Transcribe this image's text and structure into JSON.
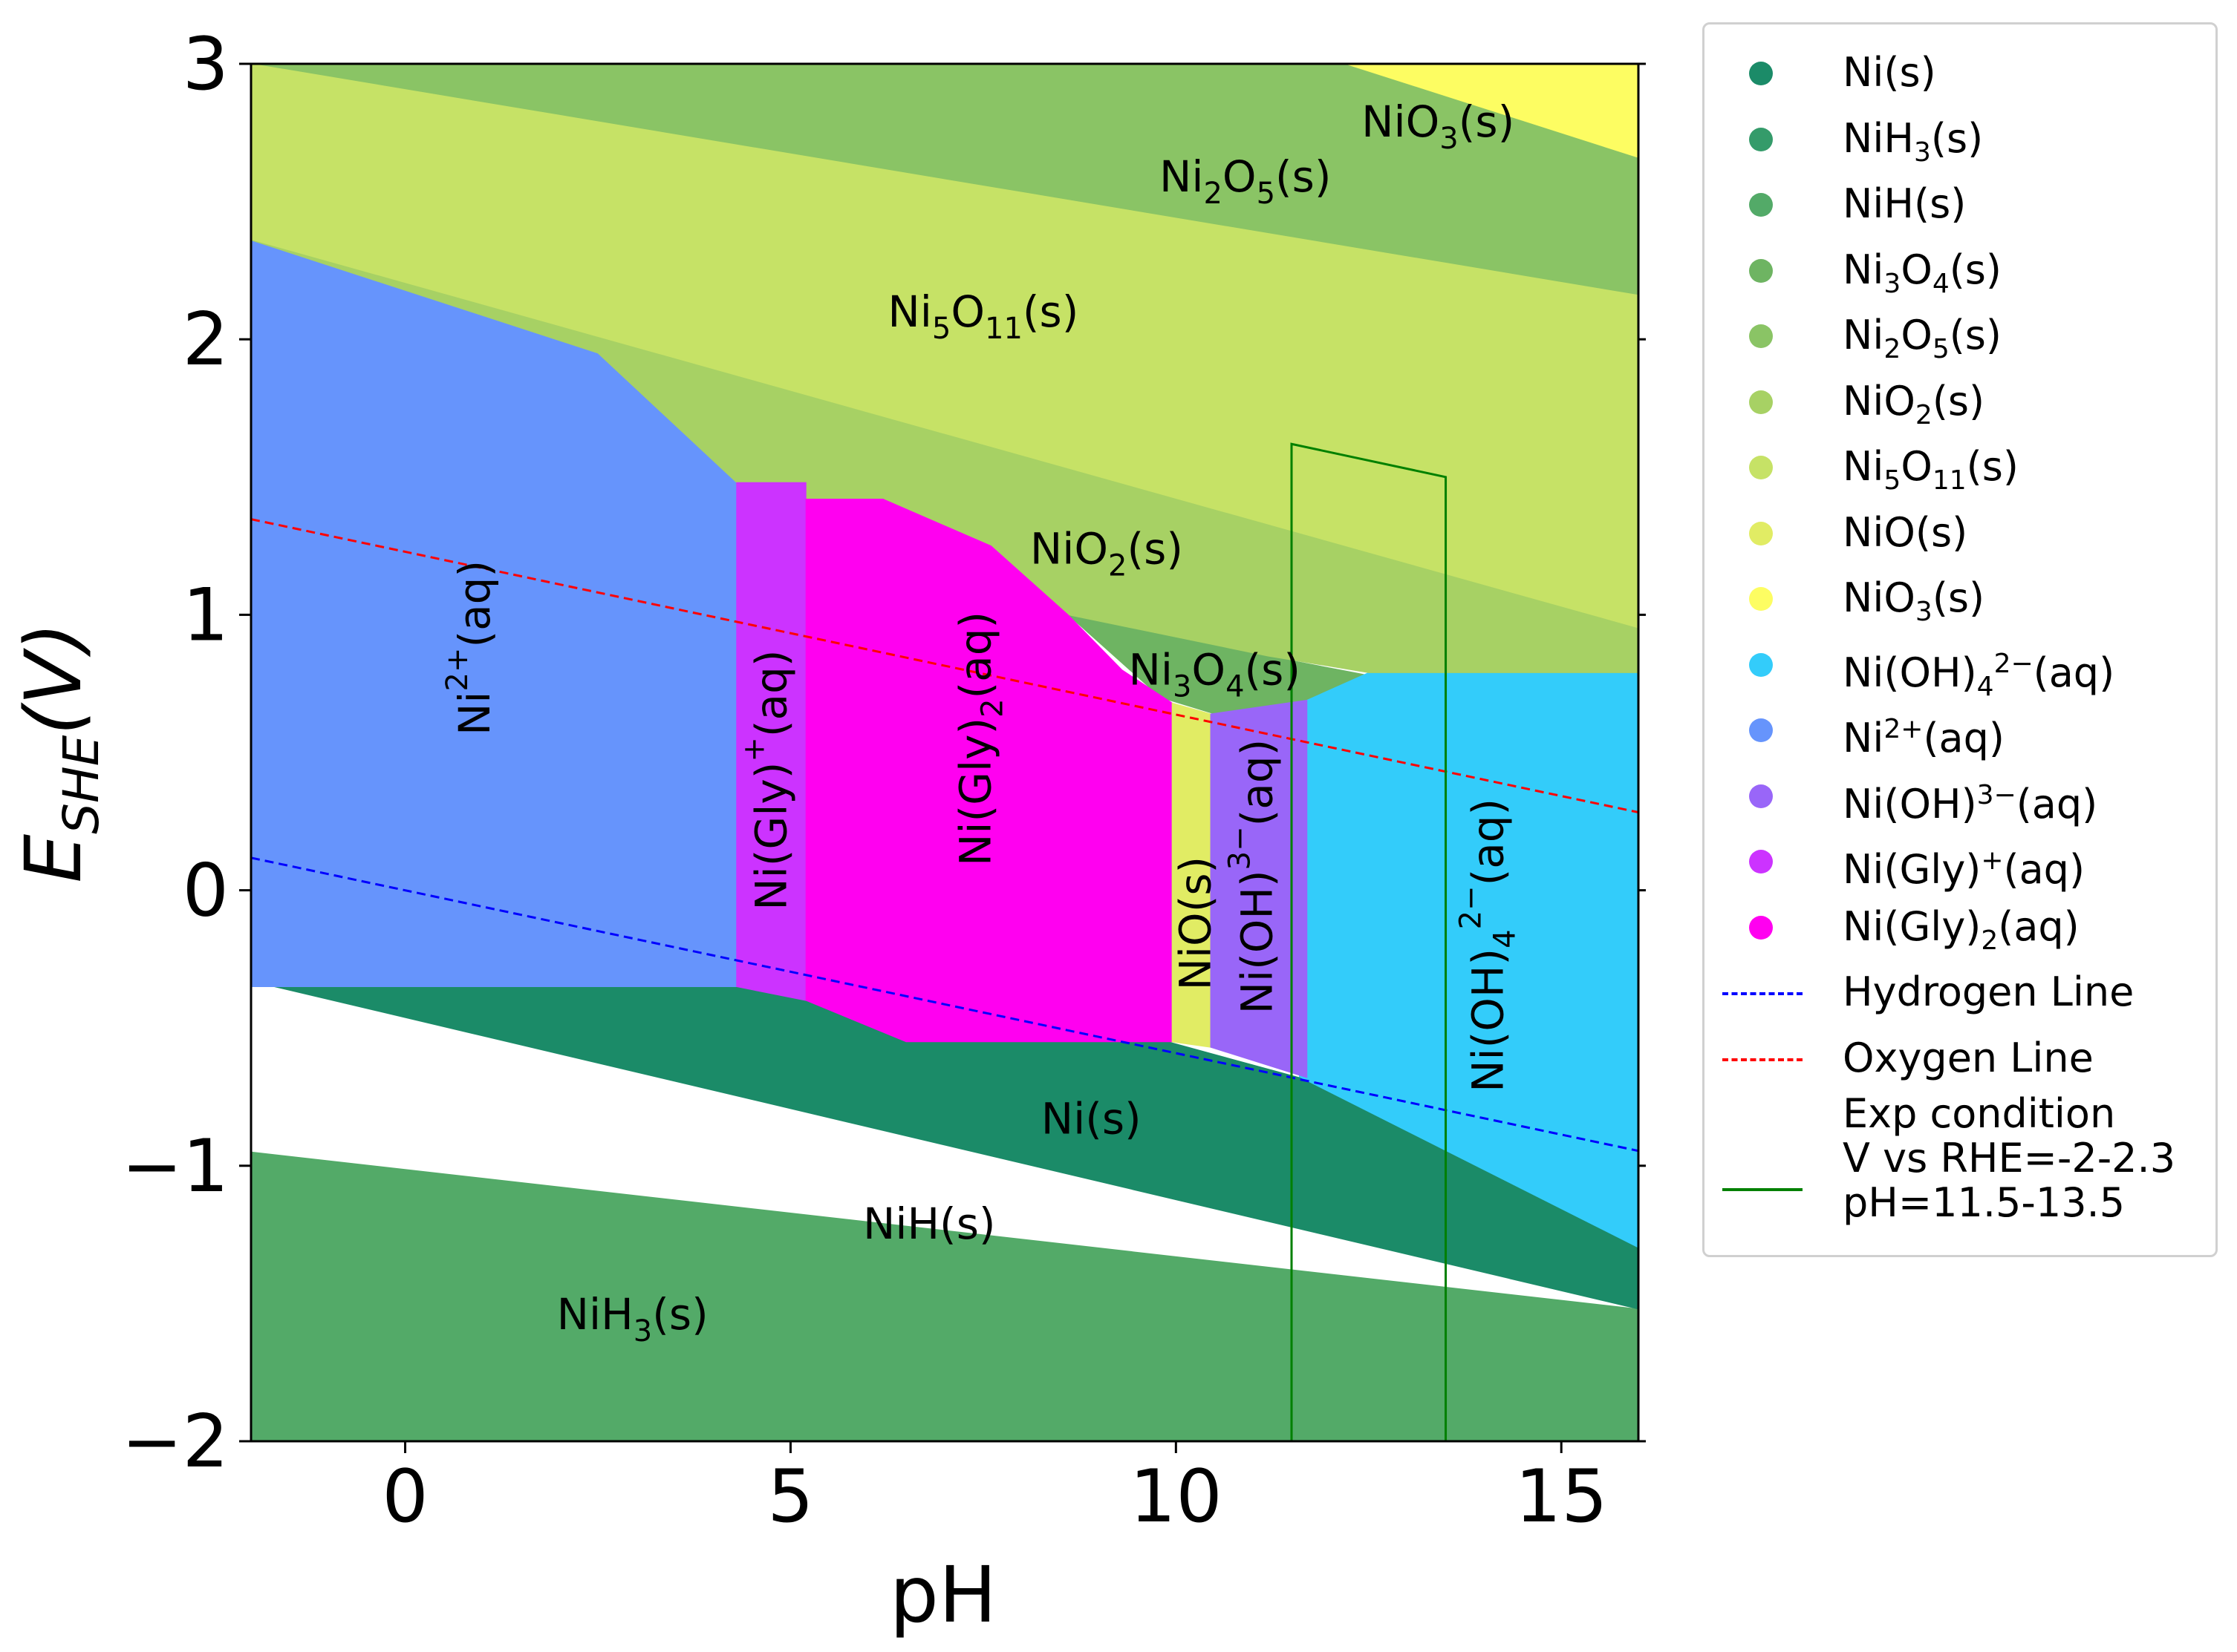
{
  "chart_data": {
    "type": "area",
    "title": "",
    "xlabel": "pH",
    "ylabel": "E",
    "ylabel_sub": "SHE",
    "ylabel_unit": "(V)",
    "xlim": [
      -2,
      16
    ],
    "ylim": [
      -2,
      3
    ],
    "xticks": [
      0,
      5,
      10,
      15
    ],
    "yticks": [
      -2,
      -1,
      0,
      1,
      2,
      3
    ],
    "xtick_labels": [
      "0",
      "5",
      "10",
      "15"
    ],
    "ytick_labels": [
      "−2",
      "−1",
      "0",
      "1",
      "2",
      "3"
    ],
    "grid": false,
    "legend_position": "outside-right",
    "phases": [
      {
        "name": "Ni(s)",
        "color": "#1b8b68"
      },
      {
        "name": "NiH3(s)",
        "color": "#349b6a"
      },
      {
        "name": "NiH(s)",
        "color": "#53aa68"
      },
      {
        "name": "Ni3O4(s)",
        "color": "#6eb462"
      },
      {
        "name": "Ni2O5(s)",
        "color": "#8ac465"
      },
      {
        "name": "NiO2(s)",
        "color": "#a7d164"
      },
      {
        "name": "Ni5O11(s)",
        "color": "#c6e266"
      },
      {
        "name": "NiO(s)",
        "color": "#e1ec64"
      },
      {
        "name": "NiO3(s)",
        "color": "#fdfd62"
      },
      {
        "name": "Ni(OH)4 2-(aq)",
        "color": "#33ccfa"
      },
      {
        "name": "Ni2+(aq)",
        "color": "#6694fc"
      },
      {
        "name": "Ni(OH)3-(aq)",
        "color": "#9966f8"
      },
      {
        "name": "Ni(Gly)+(aq)",
        "color": "#cc33ff"
      },
      {
        "name": "Ni(Gly)2(aq)",
        "color": "#ff00f0"
      }
    ],
    "regions": [
      {
        "phase": "NiH3(s)",
        "color": "#349b6a",
        "polygon": [
          [
            -2,
            -2
          ],
          [
            16,
            -2
          ],
          [
            16,
            -2.6
          ],
          [
            -2,
            -0.95
          ]
        ]
      },
      {
        "phase": "NiH(s)",
        "color": "#53aa68",
        "polygon": [
          [
            -2,
            -0.95
          ],
          [
            16,
            -1.52
          ],
          [
            16,
            -1.52
          ],
          [
            16,
            -2.6
          ],
          [
            -2,
            -2
          ]
        ]
      },
      {
        "phase": "Ni2O5(s)",
        "color": "#8ac465",
        "polygon": [
          [
            -2,
            3
          ],
          [
            16,
            3
          ],
          [
            16,
            2.16
          ],
          [
            -2,
            3
          ]
        ]
      },
      {
        "phase": "Ni5O11(s)",
        "color": "#c6e266",
        "polygon": [
          [
            -2,
            3
          ],
          [
            16,
            2.16
          ],
          [
            16,
            0.95
          ],
          [
            -2,
            2.36
          ]
        ]
      },
      {
        "phase": "NiO3(s)",
        "color": "#fdfd62",
        "polygon": [
          [
            12.2,
            3
          ],
          [
            16,
            3
          ],
          [
            16,
            2.66
          ]
        ]
      },
      {
        "phase": "Ni3O4(s)",
        "color": "#6eb462",
        "polygon": [
          [
            8.6,
            1.0
          ],
          [
            11.2,
            0.85
          ],
          [
            12.5,
            0.78
          ],
          [
            11.6,
            0.68
          ],
          [
            10.5,
            0.64
          ],
          [
            9.8,
            0.7
          ]
        ]
      },
      {
        "phase": "Ni(OH)4 2-(aq)",
        "color": "#33ccfa",
        "polygon": [
          [
            11.7,
            0.69
          ],
          [
            12.5,
            0.79
          ],
          [
            16,
            0.79
          ],
          [
            16,
            -1.3
          ],
          [
            11.6,
            -0.7
          ]
        ]
      },
      {
        "phase": "Ni(s)",
        "color": "#1b8b68",
        "polygon": [
          [
            -2,
            -0.33
          ],
          [
            4.3,
            -0.35
          ],
          [
            5.2,
            -0.4
          ],
          [
            6.5,
            -0.55
          ],
          [
            9.9,
            -0.55
          ],
          [
            11.6,
            -0.68
          ],
          [
            16,
            -1.3
          ],
          [
            16,
            -1.52
          ],
          [
            -2,
            -0.33
          ]
        ]
      },
      {
        "phase": "Ni2+(aq)",
        "color": "#6694fc",
        "polygon": [
          [
            -2,
            2.36
          ],
          [
            2.5,
            1.95
          ],
          [
            4.3,
            1.48
          ],
          [
            4.3,
            -0.35
          ],
          [
            -2,
            -0.35
          ]
        ]
      },
      {
        "phase": "NiO2(s)",
        "color": "#a7d164",
        "polygon": [
          [
            -2,
            2.36
          ],
          [
            16,
            0.95
          ],
          [
            16,
            0.79
          ],
          [
            12.5,
            0.79
          ],
          [
            11.2,
            0.85
          ],
          [
            8.6,
            1.0
          ],
          [
            7.8,
            1.2
          ],
          [
            5.2,
            1.42
          ],
          [
            4.3,
            1.48
          ],
          [
            2.5,
            1.95
          ]
        ]
      },
      {
        "phase": "Ni(Gly)+(aq)",
        "color": "#cc33ff",
        "polygon": [
          [
            4.3,
            1.48
          ],
          [
            5.2,
            1.48
          ],
          [
            5.2,
            -0.4
          ],
          [
            4.3,
            -0.35
          ]
        ]
      },
      {
        "phase": "Ni(Gly)2(aq)",
        "color": "#ff00f0",
        "polygon": [
          [
            5.2,
            1.42
          ],
          [
            6.2,
            1.42
          ],
          [
            7.6,
            1.25
          ],
          [
            8.6,
            1.0
          ],
          [
            9.3,
            0.8
          ],
          [
            9.95,
            0.68
          ],
          [
            9.95,
            -0.55
          ],
          [
            6.5,
            -0.55
          ],
          [
            5.2,
            -0.4
          ]
        ]
      },
      {
        "phase": "NiO(s)",
        "color": "#e1ec64",
        "polygon": [
          [
            9.95,
            0.68
          ],
          [
            10.45,
            0.64
          ],
          [
            10.45,
            -0.57
          ],
          [
            9.95,
            -0.55
          ]
        ]
      },
      {
        "phase": "Ni(OH)3-(aq)",
        "color": "#9966f8",
        "polygon": [
          [
            10.45,
            0.64
          ],
          [
            11.7,
            0.69
          ],
          [
            11.7,
            -0.68
          ],
          [
            10.45,
            -0.57
          ]
        ]
      }
    ],
    "region_labels": [
      {
        "text": "NiO3(s)",
        "x": 13.4,
        "y": 2.79,
        "rotate": 0
      },
      {
        "text": "Ni2O5(s)",
        "x": 10.9,
        "y": 2.59,
        "rotate": 0
      },
      {
        "text": "Ni5O11(s)",
        "x": 7.5,
        "y": 2.1,
        "rotate": 0
      },
      {
        "text": "NiO2(s)",
        "x": 9.1,
        "y": 1.24,
        "rotate": 0
      },
      {
        "text": "Ni3O4(s)",
        "x": 10.5,
        "y": 0.8,
        "rotate": 0
      },
      {
        "text": "Ni2+(aq)",
        "x": 0.9,
        "y": 0.88,
        "rotate": -90
      },
      {
        "text": "Ni(Gly)+(aq)",
        "x": 4.75,
        "y": 0.4,
        "rotate": -90
      },
      {
        "text": "Ni(Gly)2(aq)",
        "x": 7.4,
        "y": 0.55,
        "rotate": -90
      },
      {
        "text": "NiO(s)",
        "x": 10.25,
        "y": -0.12,
        "rotate": -90
      },
      {
        "text": "Ni(OH)3-(aq)",
        "x": 11.05,
        "y": 0.05,
        "rotate": -90
      },
      {
        "text": "Ni(OH)4 2-(aq)",
        "x": 14.05,
        "y": -0.2,
        "rotate": -90
      },
      {
        "text": "Ni(s)",
        "x": 8.9,
        "y": -0.83,
        "rotate": 0
      },
      {
        "text": "NiH(s)",
        "x": 6.8,
        "y": -1.21,
        "rotate": 0
      },
      {
        "text": "NiH3(s)",
        "x": 2.95,
        "y": -1.54,
        "rotate": 0
      }
    ],
    "lines": [
      {
        "name": "Hydrogen Line",
        "style": "dashed",
        "color": "#0000ff",
        "x": [
          -2,
          16
        ],
        "y": [
          0.118,
          -0.946
        ]
      },
      {
        "name": "Oxygen Line",
        "style": "dashed",
        "color": "#ff0000",
        "x": [
          -2,
          16
        ],
        "y": [
          1.347,
          0.283
        ]
      },
      {
        "name": "Exp condition\nV vs RHE=-2-2.3\npH=11.5-13.5",
        "style": "solid",
        "color": "#008000",
        "x": [
          11.5,
          11.5,
          13.5,
          13.5
        ],
        "y": [
          -2,
          1.62,
          1.5,
          -2
        ]
      }
    ],
    "legend": [
      {
        "label": "Ni(s)",
        "type": "marker",
        "color": "#1b8b68"
      },
      {
        "label": "NiH3(s)",
        "type": "marker",
        "color": "#349b6a"
      },
      {
        "label": "NiH(s)",
        "type": "marker",
        "color": "#53aa68"
      },
      {
        "label": "Ni3O4(s)",
        "type": "marker",
        "color": "#6eb462"
      },
      {
        "label": "Ni2O5(s)",
        "type": "marker",
        "color": "#8ac465"
      },
      {
        "label": "NiO2(s)",
        "type": "marker",
        "color": "#a7d164"
      },
      {
        "label": "Ni5O11(s)",
        "type": "marker",
        "color": "#c6e266"
      },
      {
        "label": "NiO(s)",
        "type": "marker",
        "color": "#e1ec64"
      },
      {
        "label": "NiO3(s)",
        "type": "marker",
        "color": "#fdfd62"
      },
      {
        "label": "Ni(OH)4 2-(aq)",
        "type": "marker",
        "color": "#33ccfa"
      },
      {
        "label": "Ni2+(aq)",
        "type": "marker",
        "color": "#6694fc"
      },
      {
        "label": "Ni(OH)3-(aq)",
        "type": "marker",
        "color": "#9966f8"
      },
      {
        "label": "Ni(Gly)+(aq)",
        "type": "marker",
        "color": "#cc33ff"
      },
      {
        "label": "Ni(Gly)2(aq)",
        "type": "marker",
        "color": "#ff00f0"
      },
      {
        "label": "Hydrogen Line",
        "type": "dashed",
        "color": "#0000ff"
      },
      {
        "label": "Oxygen Line",
        "type": "dashed",
        "color": "#ff0000"
      },
      {
        "label": "Exp condition\nV vs RHE=-2-2.3\npH=11.5-13.5",
        "type": "solid",
        "color": "#008000"
      }
    ]
  }
}
